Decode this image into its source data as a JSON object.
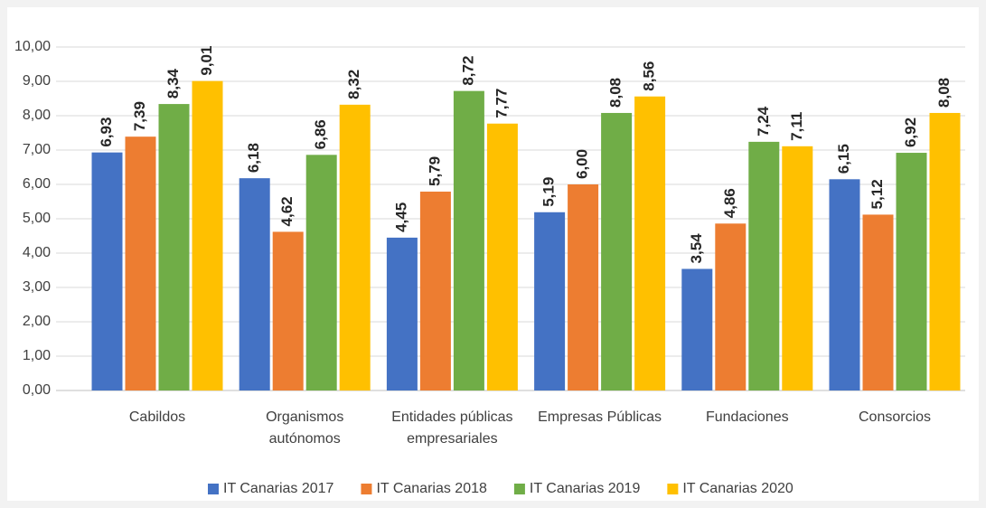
{
  "chart_data": {
    "type": "bar",
    "categories": [
      "Cabildos",
      "Organismos autónomos",
      "Entidades públicas empresariales",
      "Empresas Públicas",
      "Fundaciones",
      "Consorcios"
    ],
    "series": [
      {
        "name": "IT Canarias 2017",
        "color": "#4472c4",
        "values": [
          6.93,
          6.18,
          4.45,
          5.19,
          3.54,
          6.15
        ],
        "value_labels": [
          "6,93",
          "6,18",
          "4,45",
          "5,19",
          "3,54",
          "6,15"
        ]
      },
      {
        "name": "IT Canarias 2018",
        "color": "#ed7d31",
        "values": [
          7.39,
          4.62,
          5.79,
          6.0,
          4.86,
          5.12
        ],
        "value_labels": [
          "7,39",
          "4,62",
          "5,79",
          "6,00",
          "4,86",
          "5,12"
        ]
      },
      {
        "name": "IT Canarias 2019",
        "color": "#70ad47",
        "values": [
          8.34,
          6.86,
          8.72,
          8.08,
          7.24,
          6.92
        ],
        "value_labels": [
          "8,34",
          "6,86",
          "8,72",
          "8,08",
          "7,24",
          "6,92"
        ]
      },
      {
        "name": "IT Canarias 2020",
        "color": "#ffc000",
        "values": [
          9.01,
          8.32,
          7.77,
          8.56,
          7.11,
          8.08
        ],
        "value_labels": [
          "9,01",
          "8,32",
          "7,77",
          "8,56",
          "7,11",
          "8,08"
        ]
      }
    ],
    "ylim": [
      0,
      10
    ],
    "yticks": [
      {
        "value": 0,
        "label": "0,00"
      },
      {
        "value": 1,
        "label": "1,00"
      },
      {
        "value": 2,
        "label": "2,00"
      },
      {
        "value": 3,
        "label": "3,00"
      },
      {
        "value": 4,
        "label": "4,00"
      },
      {
        "value": 5,
        "label": "5,00"
      },
      {
        "value": 6,
        "label": "6,00"
      },
      {
        "value": 7,
        "label": "7,00"
      },
      {
        "value": 8,
        "label": "8,00"
      },
      {
        "value": 9,
        "label": "9,00"
      },
      {
        "value": 10,
        "label": "10,00"
      }
    ],
    "grid": true,
    "legend": "bottom"
  }
}
